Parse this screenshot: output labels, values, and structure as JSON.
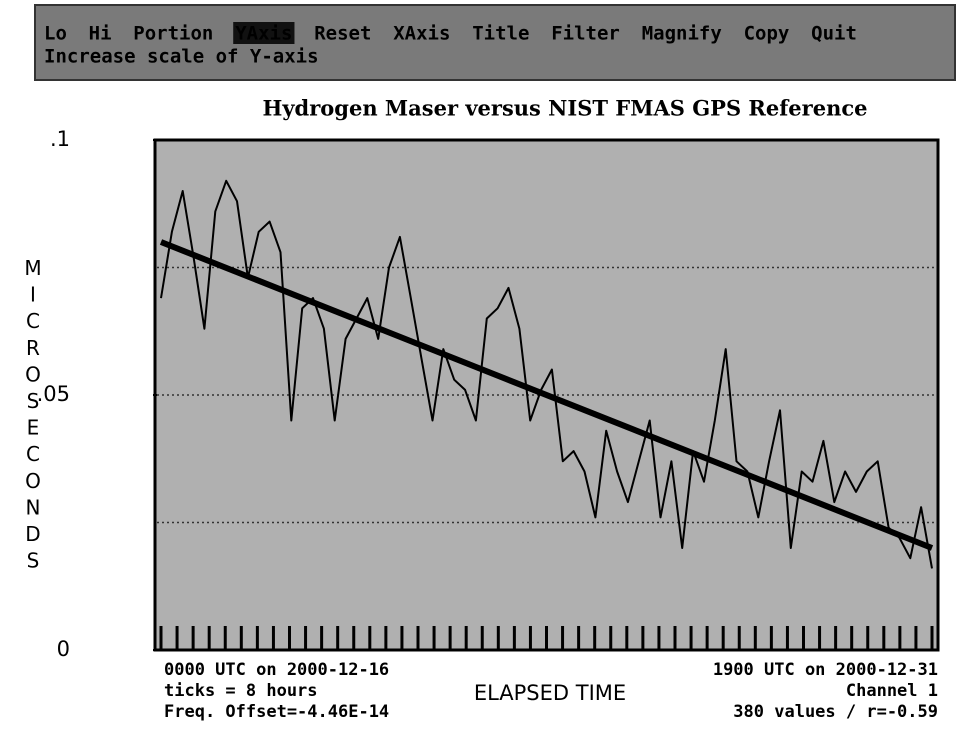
{
  "menu": {
    "items": [
      "Lo",
      "Hi",
      "Portion",
      "YAxis",
      "Reset",
      "XAxis",
      "Title",
      "Filter",
      "Magnify",
      "Copy",
      "Quit"
    ],
    "selected": 3,
    "hint": "Increase scale of Y-axis"
  },
  "chart_data": {
    "type": "line",
    "title": "Hydrogen Maser versus NIST FMAS GPS Reference",
    "ylabel": "MICROSECONDS",
    "xlabel": "ELAPSED TIME",
    "ylim": [
      0,
      0.1
    ],
    "yticks": [
      {
        "value": 0.1,
        "label": ".1"
      },
      {
        "value": 0.05,
        "label": ".05"
      },
      0
    ],
    "grid_lines": [
      0.025,
      0.05,
      0.075
    ],
    "series": [
      {
        "color": "#000000",
        "values": [
          0.069,
          0.082,
          0.09,
          0.077,
          0.063,
          0.086,
          0.092,
          0.088,
          0.073,
          0.082,
          0.084,
          0.078,
          0.045,
          0.067,
          0.069,
          0.063,
          0.045,
          0.061,
          0.065,
          0.069,
          0.061,
          0.075,
          0.081,
          0.069,
          0.057,
          0.045,
          0.059,
          0.053,
          0.051,
          0.045,
          0.065,
          0.067,
          0.071,
          0.063,
          0.045,
          0.051,
          0.055,
          0.037,
          0.039,
          0.035,
          0.026,
          0.043,
          0.035,
          0.029,
          0.037,
          0.045,
          0.026,
          0.037,
          0.02,
          0.039,
          0.033,
          0.045,
          0.059,
          0.037,
          0.035,
          0.026,
          0.037,
          0.047,
          0.02,
          0.035,
          0.033,
          0.041,
          0.029,
          0.035,
          0.031,
          0.035,
          0.037,
          0.024,
          0.022,
          0.018,
          0.028,
          0.016
        ]
      },
      {
        "color": "#000000",
        "values": [
          0.08,
          0.02
        ]
      }
    ],
    "footer_left": [
      "0000 UTC on 2000-12-16",
      "ticks = 8 hours",
      "Freq. Offset=-4.46E-14"
    ],
    "footer_right": [
      "1900 UTC on 2000-12-31",
      "Channel 1",
      "380 values / r=-0.59"
    ]
  }
}
